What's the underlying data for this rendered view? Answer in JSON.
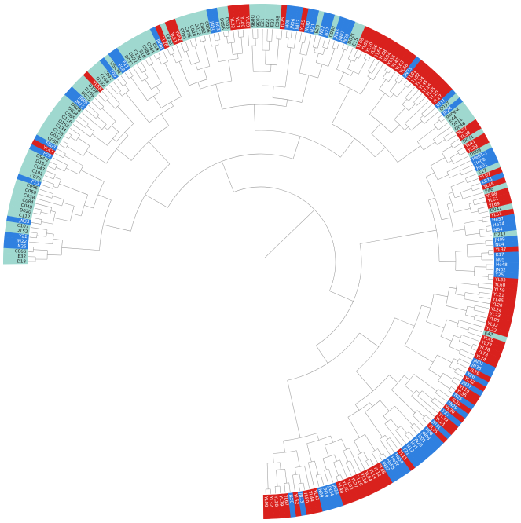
{
  "colors": {
    "red": "#d9211d",
    "blue": "#2f80e0",
    "teal": "#9fd8cf",
    "branch": "#9a9a9a"
  },
  "tree": {
    "span_degrees": 270,
    "leaves": [
      {
        "label": "D18",
        "group": "teal"
      },
      {
        "label": "E32",
        "group": "teal"
      },
      {
        "label": "C066",
        "group": "teal"
      },
      {
        "label": "N25",
        "group": "blue"
      },
      {
        "label": "JN22",
        "group": "blue"
      },
      {
        "label": "Y21",
        "group": "blue"
      },
      {
        "label": "D152",
        "group": "teal"
      },
      {
        "label": "C107",
        "group": "teal"
      },
      {
        "label": "JN33",
        "group": "blue"
      },
      {
        "label": "C112",
        "group": "teal"
      },
      {
        "label": "D020",
        "group": "teal"
      },
      {
        "label": "C048",
        "group": "teal"
      },
      {
        "label": "C084",
        "group": "teal"
      },
      {
        "label": "C038",
        "group": "teal"
      },
      {
        "label": "C050",
        "group": "teal"
      },
      {
        "label": "C096",
        "group": "teal"
      },
      {
        "label": "F13",
        "group": "blue"
      },
      {
        "label": "C076",
        "group": "teal"
      },
      {
        "label": "C101",
        "group": "teal"
      },
      {
        "label": "C047",
        "group": "teal"
      },
      {
        "label": "D152",
        "group": "teal"
      },
      {
        "label": "D94-2",
        "group": "teal"
      },
      {
        "label": "F09",
        "group": "blue"
      },
      {
        "label": "YL47",
        "group": "red"
      },
      {
        "label": "F503",
        "group": "blue"
      },
      {
        "label": "C080",
        "group": "teal"
      },
      {
        "label": "D032",
        "group": "teal"
      },
      {
        "label": "C123",
        "group": "teal"
      },
      {
        "label": "C134",
        "group": "teal"
      },
      {
        "label": "D163",
        "group": "teal"
      },
      {
        "label": "C116",
        "group": "teal"
      },
      {
        "label": "C085",
        "group": "teal"
      },
      {
        "label": "D034",
        "group": "teal"
      },
      {
        "label": "D028",
        "group": "teal"
      },
      {
        "label": "JN75",
        "group": "blue"
      },
      {
        "label": "JN89",
        "group": "blue"
      },
      {
        "label": "D025",
        "group": "teal"
      },
      {
        "label": "D169",
        "group": "teal"
      },
      {
        "label": "D198",
        "group": "teal"
      },
      {
        "label": "YL58",
        "group": "red"
      },
      {
        "label": "D192",
        "group": "teal"
      },
      {
        "label": "C058",
        "group": "teal"
      },
      {
        "label": "C092",
        "group": "teal"
      },
      {
        "label": "F06",
        "group": "blue"
      },
      {
        "label": "USK34",
        "group": "teal"
      },
      {
        "label": "F08",
        "group": "blue"
      },
      {
        "label": "F11",
        "group": "blue"
      },
      {
        "label": "D072",
        "group": "teal"
      },
      {
        "label": "D022",
        "group": "teal"
      },
      {
        "label": "C130",
        "group": "teal"
      },
      {
        "label": "E16",
        "group": "teal"
      },
      {
        "label": "C089",
        "group": "teal"
      },
      {
        "label": "C084",
        "group": "teal"
      },
      {
        "label": "E19",
        "group": "teal"
      },
      {
        "label": "JN98",
        "group": "blue"
      },
      {
        "label": "YL28",
        "group": "red"
      },
      {
        "label": "C038",
        "group": "teal"
      },
      {
        "label": "YL51",
        "group": "red"
      },
      {
        "label": "YL62",
        "group": "red"
      },
      {
        "label": "C093",
        "group": "teal"
      },
      {
        "label": "C075",
        "group": "teal"
      },
      {
        "label": "C028",
        "group": "teal"
      },
      {
        "label": "D012",
        "group": "teal"
      },
      {
        "label": "C082",
        "group": "teal"
      },
      {
        "label": "C006",
        "group": "teal"
      },
      {
        "label": "JN50",
        "group": "blue"
      },
      {
        "label": "N03",
        "group": "blue"
      },
      {
        "label": "D056",
        "group": "teal"
      },
      {
        "label": "D055",
        "group": "teal"
      },
      {
        "label": "YL32",
        "group": "red"
      },
      {
        "label": "YL71",
        "group": "red"
      },
      {
        "label": "YL80",
        "group": "red"
      },
      {
        "label": "YL09",
        "group": "red"
      },
      {
        "label": "D096",
        "group": "teal"
      },
      {
        "label": "C036",
        "group": "teal"
      },
      {
        "label": "E21",
        "group": "teal"
      },
      {
        "label": "E22",
        "group": "teal"
      },
      {
        "label": "E23",
        "group": "teal"
      },
      {
        "label": "C098",
        "group": "teal"
      },
      {
        "label": "YL75",
        "group": "red"
      },
      {
        "label": "N05",
        "group": "blue"
      },
      {
        "label": "JN06",
        "group": "blue"
      },
      {
        "label": "JN17",
        "group": "blue"
      },
      {
        "label": "YL55",
        "group": "red"
      },
      {
        "label": "JN30",
        "group": "blue"
      },
      {
        "label": "N21",
        "group": "blue"
      },
      {
        "label": "E26",
        "group": "teal"
      },
      {
        "label": "N22",
        "group": "blue"
      },
      {
        "label": "N27",
        "group": "blue"
      },
      {
        "label": "C040",
        "group": "teal"
      },
      {
        "label": "JN45",
        "group": "blue"
      },
      {
        "label": "JN07",
        "group": "blue"
      },
      {
        "label": "N28",
        "group": "blue"
      },
      {
        "label": "D021",
        "group": "teal"
      },
      {
        "label": "E15",
        "group": "teal"
      },
      {
        "label": "YL06",
        "group": "red"
      },
      {
        "label": "YL65",
        "group": "red"
      },
      {
        "label": "YL70",
        "group": "red"
      },
      {
        "label": "YL66",
        "group": "red"
      },
      {
        "label": "YL64",
        "group": "red"
      },
      {
        "label": "YL08",
        "group": "red"
      },
      {
        "label": "YL54",
        "group": "red"
      },
      {
        "label": "YL56",
        "group": "red"
      },
      {
        "label": "YL42",
        "group": "red"
      },
      {
        "label": "YL63",
        "group": "red"
      },
      {
        "label": "YL68",
        "group": "red"
      },
      {
        "label": "JN33",
        "group": "blue"
      },
      {
        "label": "YL01",
        "group": "red"
      },
      {
        "label": "YL02",
        "group": "red"
      },
      {
        "label": "YL34",
        "group": "red"
      },
      {
        "label": "YL45",
        "group": "red"
      },
      {
        "label": "YL16",
        "group": "red"
      },
      {
        "label": "YL15",
        "group": "red"
      },
      {
        "label": "YL10",
        "group": "red"
      },
      {
        "label": "YL17",
        "group": "red"
      },
      {
        "label": "JN11",
        "group": "blue"
      },
      {
        "label": "C037",
        "group": "teal"
      },
      {
        "label": "JN24",
        "group": "blue"
      },
      {
        "label": "gang-2",
        "group": "teal"
      },
      {
        "label": "E44",
        "group": "teal"
      },
      {
        "label": "D011",
        "group": "teal"
      },
      {
        "label": "D046",
        "group": "teal"
      },
      {
        "label": "YL57",
        "group": "red"
      },
      {
        "label": "YL38",
        "group": "red"
      },
      {
        "label": "D071",
        "group": "teal"
      },
      {
        "label": "YL41",
        "group": "red"
      },
      {
        "label": "YL29",
        "group": "red"
      },
      {
        "label": "D009",
        "group": "teal"
      },
      {
        "label": "HeB1-1",
        "group": "blue"
      },
      {
        "label": "He08",
        "group": "blue"
      },
      {
        "label": "He01",
        "group": "blue"
      },
      {
        "label": "E17",
        "group": "teal"
      },
      {
        "label": "YL07",
        "group": "red"
      },
      {
        "label": "LB11",
        "group": "blue"
      },
      {
        "label": "YL48",
        "group": "red"
      },
      {
        "label": "E46",
        "group": "teal"
      },
      {
        "label": "YL08",
        "group": "red"
      },
      {
        "label": "YL61",
        "group": "red"
      },
      {
        "label": "YL69",
        "group": "red"
      },
      {
        "label": "D042",
        "group": "teal"
      },
      {
        "label": "YL53",
        "group": "red"
      },
      {
        "label": "He57",
        "group": "blue"
      },
      {
        "label": "He74",
        "group": "blue"
      },
      {
        "label": "N04",
        "group": "blue"
      },
      {
        "label": "D217",
        "group": "teal"
      },
      {
        "label": "JN09",
        "group": "blue"
      },
      {
        "label": "N04",
        "group": "blue"
      },
      {
        "label": "YL37",
        "group": "red"
      },
      {
        "label": "K17",
        "group": "blue"
      },
      {
        "label": "N05",
        "group": "blue"
      },
      {
        "label": "He48",
        "group": "blue"
      },
      {
        "label": "JN02",
        "group": "blue"
      },
      {
        "label": "Y25",
        "group": "blue"
      },
      {
        "label": "YL33",
        "group": "red"
      },
      {
        "label": "YL60",
        "group": "red"
      },
      {
        "label": "YL59",
        "group": "red"
      },
      {
        "label": "YL21",
        "group": "red"
      },
      {
        "label": "YL46",
        "group": "red"
      },
      {
        "label": "YL20",
        "group": "red"
      },
      {
        "label": "YL24",
        "group": "red"
      },
      {
        "label": "YL23",
        "group": "red"
      },
      {
        "label": "YL06",
        "group": "red"
      },
      {
        "label": "YL42",
        "group": "red"
      },
      {
        "label": "YL22",
        "group": "red"
      },
      {
        "label": "E47",
        "group": "teal"
      },
      {
        "label": "YL49",
        "group": "red"
      },
      {
        "label": "YL77",
        "group": "red"
      },
      {
        "label": "YL78",
        "group": "red"
      },
      {
        "label": "YL73",
        "group": "red"
      },
      {
        "label": "YL74",
        "group": "red"
      },
      {
        "label": "JN01",
        "group": "blue"
      },
      {
        "label": "JN35",
        "group": "blue"
      },
      {
        "label": "YL76",
        "group": "red"
      },
      {
        "label": "Y26",
        "group": "blue"
      },
      {
        "label": "YL72",
        "group": "red"
      },
      {
        "label": "JN27",
        "group": "blue"
      },
      {
        "label": "YL19",
        "group": "red"
      },
      {
        "label": "YL35",
        "group": "red"
      },
      {
        "label": "N15",
        "group": "blue"
      },
      {
        "label": "YL31",
        "group": "red"
      },
      {
        "label": "JN29",
        "group": "blue"
      },
      {
        "label": "YL30",
        "group": "red"
      },
      {
        "label": "Y22",
        "group": "blue"
      },
      {
        "label": "YL39",
        "group": "red"
      },
      {
        "label": "YL13",
        "group": "red"
      },
      {
        "label": "JN31",
        "group": "blue"
      },
      {
        "label": "YL25",
        "group": "red"
      },
      {
        "label": "N08",
        "group": "blue"
      },
      {
        "label": "JN08",
        "group": "blue"
      },
      {
        "label": "N01",
        "group": "blue"
      },
      {
        "label": "JN23",
        "group": "blue"
      },
      {
        "label": "N31",
        "group": "blue"
      },
      {
        "label": "N12",
        "group": "blue"
      },
      {
        "label": "Y21",
        "group": "blue"
      },
      {
        "label": "YL11",
        "group": "red"
      },
      {
        "label": "He54",
        "group": "blue"
      },
      {
        "label": "He56",
        "group": "blue"
      },
      {
        "label": "He55",
        "group": "blue"
      },
      {
        "label": "JN32",
        "group": "blue"
      },
      {
        "label": "YL05",
        "group": "red"
      },
      {
        "label": "YL12",
        "group": "red"
      },
      {
        "label": "YL14",
        "group": "red"
      },
      {
        "label": "YL04",
        "group": "red"
      },
      {
        "label": "YL18",
        "group": "red"
      },
      {
        "label": "YL26",
        "group": "red"
      },
      {
        "label": "YL27",
        "group": "red"
      },
      {
        "label": "YL03",
        "group": "red"
      },
      {
        "label": "YL36",
        "group": "red"
      },
      {
        "label": "YL40",
        "group": "red"
      },
      {
        "label": "JN26",
        "group": "blue"
      },
      {
        "label": "JN34",
        "group": "blue"
      },
      {
        "label": "JN10",
        "group": "blue"
      },
      {
        "label": "N09",
        "group": "blue"
      },
      {
        "label": "YL43",
        "group": "red"
      },
      {
        "label": "YL44",
        "group": "red"
      },
      {
        "label": "YL50",
        "group": "red"
      },
      {
        "label": "JN13",
        "group": "blue"
      },
      {
        "label": "YL52",
        "group": "red"
      },
      {
        "label": "N26",
        "group": "blue"
      },
      {
        "label": "YL67",
        "group": "red"
      },
      {
        "label": "YL79",
        "group": "red"
      },
      {
        "label": "YL28",
        "group": "red"
      },
      {
        "label": "YL32",
        "group": "red"
      },
      {
        "label": "YL09",
        "group": "red"
      }
    ]
  }
}
